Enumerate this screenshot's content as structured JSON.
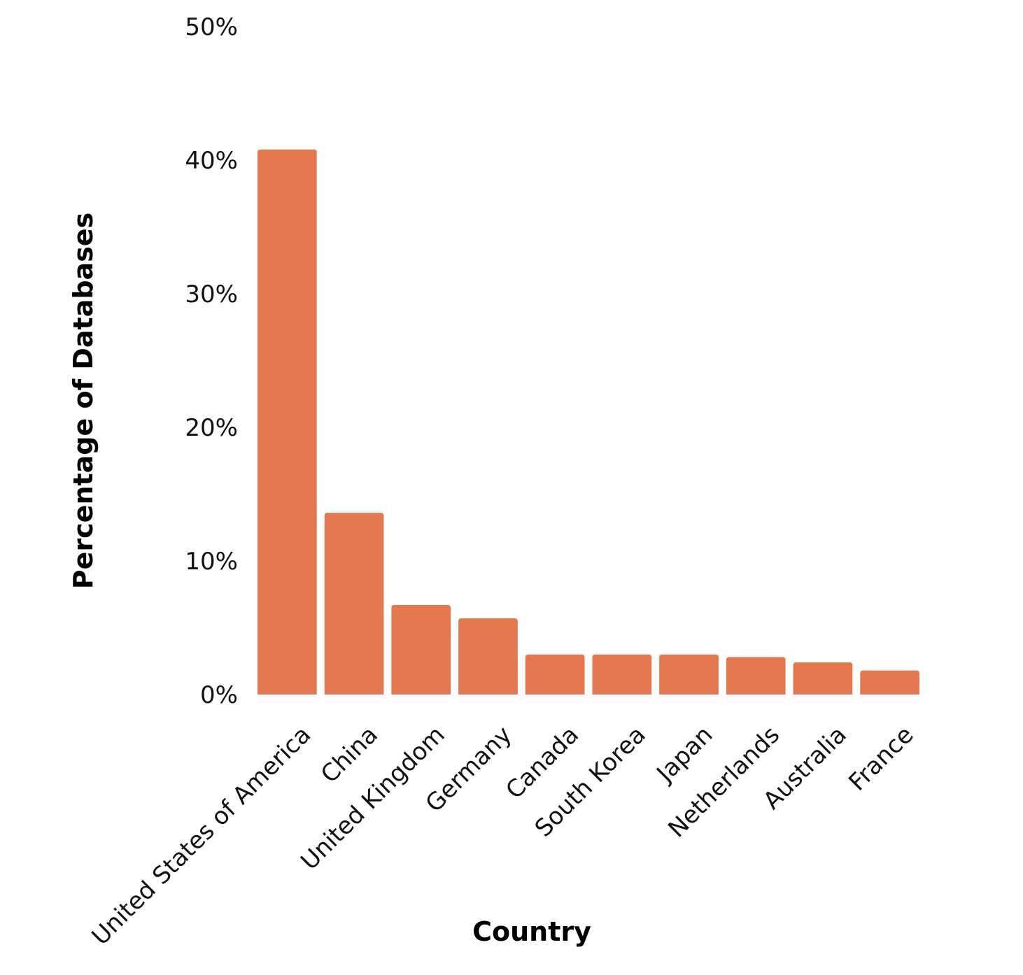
{
  "chart_data": {
    "type": "bar",
    "title": "",
    "xlabel": "Country",
    "ylabel": "Percentage of Databases",
    "ylim": [
      0,
      50
    ],
    "yticks": [
      0,
      10,
      20,
      30,
      40,
      50
    ],
    "ytick_labels": [
      "0%",
      "10%",
      "20%",
      "30%",
      "40%",
      "50%"
    ],
    "categories": [
      "United States of America",
      "China",
      "United Kingdom",
      "Germany",
      "Canada",
      "South Korea",
      "Japan",
      "Netherlands",
      "Australia",
      "France"
    ],
    "values": [
      40.8,
      13.6,
      6.7,
      5.7,
      3.0,
      3.0,
      3.0,
      2.8,
      2.4,
      1.8
    ],
    "grid": false,
    "legend": "none",
    "bar_color": "#E5774E"
  }
}
